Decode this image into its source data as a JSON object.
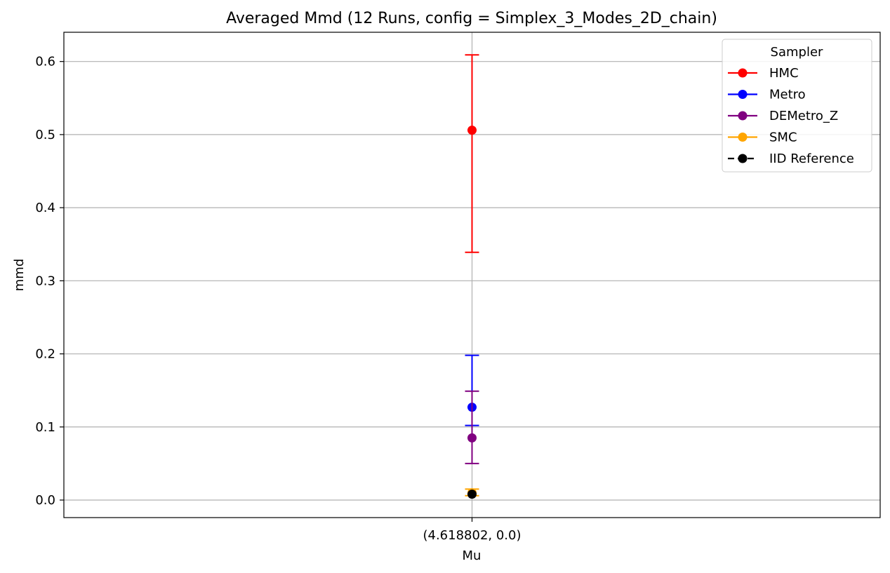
{
  "chart_data": {
    "type": "scatter",
    "title": "Averaged Mmd (12 Runs, config = Simplex_3_Modes_2D_chain)",
    "xlabel": "Mu",
    "ylabel": "mmd",
    "categories": [
      "(4.618802, 0.0)"
    ],
    "ylim": [
      -0.024,
      0.64
    ],
    "yticks": [
      0.0,
      0.1,
      0.2,
      0.3,
      0.4,
      0.5,
      0.6
    ],
    "ytick_labels": [
      "0.0",
      "0.1",
      "0.2",
      "0.3",
      "0.4",
      "0.5",
      "0.6"
    ],
    "grid": true,
    "legend": {
      "title": "Sampler",
      "position": "top-right"
    },
    "series": [
      {
        "name": "HMC",
        "color": "#ff0000",
        "marker": "circle",
        "line_style": "solid",
        "values": [
          0.506
        ],
        "err_low": [
          0.339
        ],
        "err_high": [
          0.609
        ]
      },
      {
        "name": "Metro",
        "color": "#0000ff",
        "marker": "circle",
        "line_style": "solid",
        "values": [
          0.127
        ],
        "err_low": [
          0.102
        ],
        "err_high": [
          0.198
        ]
      },
      {
        "name": "DEMetro_Z",
        "color": "#800080",
        "marker": "circle",
        "line_style": "solid",
        "values": [
          0.085
        ],
        "err_low": [
          0.05
        ],
        "err_high": [
          0.149
        ]
      },
      {
        "name": "SMC",
        "color": "#ffa500",
        "marker": "circle",
        "line_style": "solid",
        "values": [
          0.01
        ],
        "err_low": [
          0.006
        ],
        "err_high": [
          0.015
        ]
      },
      {
        "name": "IID Reference",
        "color": "#000000",
        "marker": "circle",
        "line_style": "dashed",
        "values": [
          0.008
        ],
        "err_low": [
          0.008
        ],
        "err_high": [
          0.008
        ]
      }
    ]
  }
}
